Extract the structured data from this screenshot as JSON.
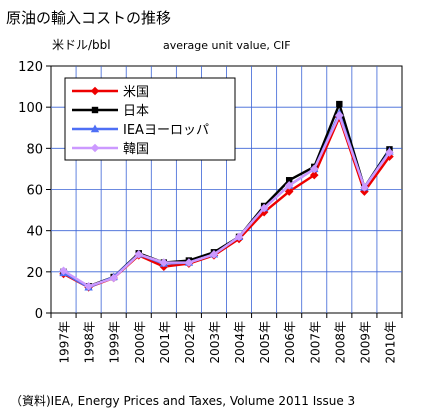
{
  "title": "原油の輸入コストの推移",
  "source": "（資料)IEA, Energy Prices and Taxes, Volume 2011 Issue 3",
  "chart_data": {
    "type": "line",
    "ylabel": "米ドル/bbl",
    "subtitle": "average unit value, CIF",
    "ylim": [
      0,
      120
    ],
    "yticks": [
      0,
      20,
      40,
      60,
      80,
      100,
      120
    ],
    "grid": true,
    "legend_position": "top-left",
    "categories": [
      "1997年",
      "1998年",
      "1999年",
      "2000年",
      "2001年",
      "2002年",
      "2003年",
      "2004年",
      "2005年",
      "2006年",
      "2007年",
      "2008年",
      "2009年",
      "2010年"
    ],
    "series": [
      {
        "name": "米国",
        "color": "#ee0000",
        "marker": "diamond",
        "values": [
          19,
          12.5,
          17,
          28,
          22.5,
          24,
          28,
          36,
          49,
          59,
          67,
          95,
          59,
          76
        ]
      },
      {
        "name": "日本",
        "color": "#000000",
        "marker": "square",
        "values": [
          20,
          13,
          17.5,
          29,
          24.5,
          25.5,
          29.5,
          37,
          52,
          64.5,
          71,
          101.5,
          61,
          79.5
        ]
      },
      {
        "name": "IEAヨーロッパ",
        "color": "#4e6ff5",
        "marker": "triangle",
        "values": [
          19.5,
          12.5,
          17.5,
          28.5,
          24,
          24.5,
          28.5,
          37,
          51,
          62,
          70,
          97,
          61,
          78.5
        ]
      },
      {
        "name": "韓国",
        "color": "#cc99ff",
        "marker": "diamond",
        "values": [
          20.5,
          13,
          17,
          28.5,
          24.5,
          24.5,
          28.5,
          37,
          51,
          62,
          70,
          96,
          61,
          78
        ]
      }
    ]
  }
}
